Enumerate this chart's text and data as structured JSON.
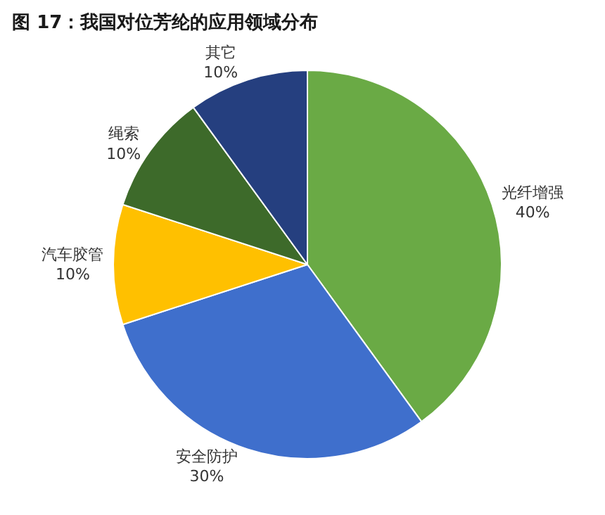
{
  "chart_data": {
    "type": "pie",
    "title": "图 17：我国对位芳纶的应用领域分布",
    "categories": [
      "光纤增强",
      "安全防护",
      "汽车胶管",
      "绳索",
      "其它"
    ],
    "values": [
      40,
      30,
      10,
      10,
      10
    ],
    "colors": [
      "#6aaa45",
      "#3f6fcc",
      "#ffc000",
      "#3d6a2a",
      "#253f7f"
    ],
    "value_labels": [
      "40%",
      "30%",
      "10%",
      "10%",
      "10%"
    ],
    "legend": false
  }
}
